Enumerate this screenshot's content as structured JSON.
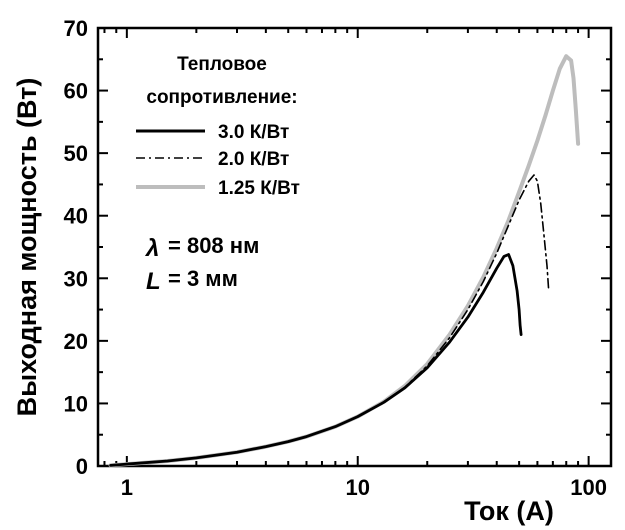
{
  "chart_data": {
    "type": "line",
    "xlabel": "Ток (А)",
    "ylabel": "Выходная мощность (Вт)",
    "x_scale": "log",
    "xlim": [
      0.75,
      125
    ],
    "ylim": [
      0,
      70
    ],
    "x_ticks": [
      {
        "value": 1,
        "label": "1"
      },
      {
        "value": 10,
        "label": "10"
      },
      {
        "value": 100,
        "label": "100"
      }
    ],
    "y_ticks": [
      {
        "value": 0,
        "label": "0"
      },
      {
        "value": 10,
        "label": "10"
      },
      {
        "value": 20,
        "label": "20"
      },
      {
        "value": 30,
        "label": "30"
      },
      {
        "value": 40,
        "label": "40"
      },
      {
        "value": 50,
        "label": "50"
      },
      {
        "value": 60,
        "label": "60"
      },
      {
        "value": 70,
        "label": "70"
      }
    ],
    "grid": false,
    "legend": {
      "title_lines": [
        "Тепловое",
        "сопротивление:"
      ],
      "placement": "top-left"
    },
    "annotations": {
      "lambda_symbol": "λ",
      "lambda_text": "= 808 нм",
      "length_symbol": "L",
      "length_text": "= 3 мм"
    },
    "series": [
      {
        "name": "3.0 К/Вт",
        "color": "#000000",
        "dash": "solid",
        "points": [
          [
            0.85,
            0.1
          ],
          [
            1,
            0.3
          ],
          [
            1.5,
            0.8
          ],
          [
            2,
            1.3
          ],
          [
            3,
            2.2
          ],
          [
            4,
            3.1
          ],
          [
            5,
            3.9
          ],
          [
            6,
            4.7
          ],
          [
            8,
            6.3
          ],
          [
            10,
            7.9
          ],
          [
            13,
            10.2
          ],
          [
            16,
            12.5
          ],
          [
            20,
            15.7
          ],
          [
            25,
            19.8
          ],
          [
            30,
            23.8
          ],
          [
            35,
            27.8
          ],
          [
            40,
            31.6
          ],
          [
            43,
            33.5
          ],
          [
            45,
            33.8
          ],
          [
            47,
            32.0
          ],
          [
            49,
            28.0
          ],
          [
            50,
            25.0
          ],
          [
            50.5,
            22.5
          ],
          [
            51,
            21.0
          ]
        ]
      },
      {
        "name": "2.0 К/Вт",
        "color": "#000000",
        "dash": "dashdot",
        "points": [
          [
            0.85,
            0.1
          ],
          [
            1,
            0.3
          ],
          [
            1.5,
            0.8
          ],
          [
            2,
            1.3
          ],
          [
            3,
            2.2
          ],
          [
            4,
            3.1
          ],
          [
            5,
            3.9
          ],
          [
            6,
            4.7
          ],
          [
            8,
            6.3
          ],
          [
            10,
            7.9
          ],
          [
            13,
            10.2
          ],
          [
            16,
            12.6
          ],
          [
            20,
            16.0
          ],
          [
            25,
            20.5
          ],
          [
            30,
            25.0
          ],
          [
            35,
            29.5
          ],
          [
            40,
            34.0
          ],
          [
            45,
            38.5
          ],
          [
            50,
            42.5
          ],
          [
            55,
            45.5
          ],
          [
            58,
            46.5
          ],
          [
            60,
            45.5
          ],
          [
            62,
            42.0
          ],
          [
            64,
            37.0
          ],
          [
            66,
            32.0
          ],
          [
            67,
            28.5
          ]
        ]
      },
      {
        "name": "1.25 К/Вт",
        "color": "#bdbdbd",
        "dash": "solid",
        "points": [
          [
            0.85,
            0.1
          ],
          [
            1,
            0.3
          ],
          [
            1.5,
            0.8
          ],
          [
            2,
            1.3
          ],
          [
            3,
            2.2
          ],
          [
            4,
            3.1
          ],
          [
            5,
            3.9
          ],
          [
            6,
            4.7
          ],
          [
            8,
            6.3
          ],
          [
            10,
            7.9
          ],
          [
            13,
            10.3
          ],
          [
            16,
            12.8
          ],
          [
            20,
            16.3
          ],
          [
            25,
            21.0
          ],
          [
            30,
            25.6
          ],
          [
            35,
            30.2
          ],
          [
            40,
            34.8
          ],
          [
            45,
            39.3
          ],
          [
            50,
            43.8
          ],
          [
            55,
            48.0
          ],
          [
            60,
            52.0
          ],
          [
            65,
            56.0
          ],
          [
            70,
            60.0
          ],
          [
            75,
            63.5
          ],
          [
            80,
            65.5
          ],
          [
            84,
            64.8
          ],
          [
            86,
            62.0
          ],
          [
            88,
            57.0
          ],
          [
            90,
            51.5
          ]
        ]
      }
    ]
  }
}
